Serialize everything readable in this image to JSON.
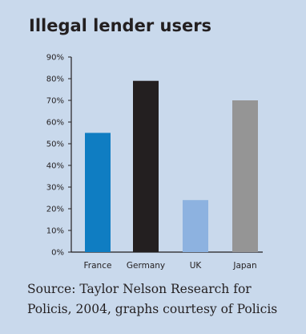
{
  "chart_data": {
    "type": "bar",
    "title": "Illegal lender users",
    "categories": [
      "France",
      "Germany",
      "UK",
      "Japan"
    ],
    "values": [
      55,
      79,
      24,
      70
    ],
    "colors": [
      "#0f7dc2",
      "#231f20",
      "#8db2e0",
      "#959595"
    ],
    "yticks": [
      "0%",
      "10%",
      "20%",
      "30%",
      "40%",
      "50%",
      "60%",
      "70%",
      "80%",
      "90%"
    ],
    "ylim": [
      0,
      90
    ],
    "ylabel": "",
    "xlabel": "",
    "grid": false,
    "legend": "none"
  },
  "source_text": "Source: Taylor Nelson Research for Policis, 2004, graphs courtesy of Policis",
  "background_color": "#c9d9ec"
}
